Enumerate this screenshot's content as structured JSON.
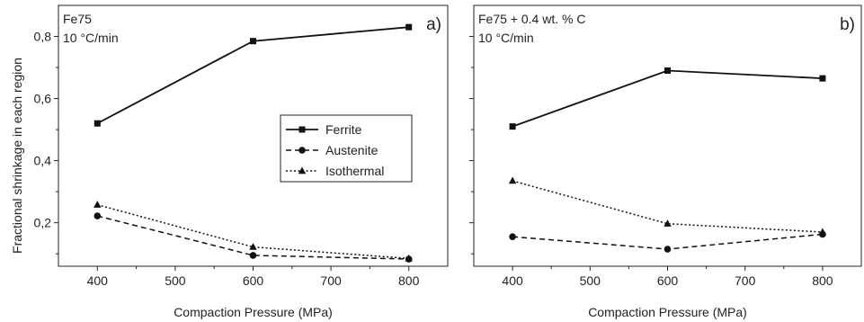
{
  "chart_data": [
    {
      "type": "line",
      "panel_label": "a)",
      "annotation_lines": [
        "Fe75",
        "10 °C/min"
      ],
      "xlabel": "Compaction Pressure (MPa)",
      "ylabel": "Fractional shrinkage in each region",
      "x": [
        400,
        600,
        800
      ],
      "xlim": [
        350,
        850
      ],
      "ylim": [
        0.06,
        0.9
      ],
      "xticks": [
        "400",
        "500",
        "600",
        "700",
        "800"
      ],
      "yticks": [
        "0,2",
        "0,4",
        "0,6",
        "0,8"
      ],
      "grid": false,
      "legend_position": "center-right",
      "series": [
        {
          "name": "Ferrite",
          "values": [
            0.52,
            0.785,
            0.83
          ],
          "line_style": "solid",
          "marker": "square"
        },
        {
          "name": "Austenite",
          "values": [
            0.222,
            0.095,
            0.083
          ],
          "line_style": "dashed",
          "marker": "circle"
        },
        {
          "name": "Isothermal",
          "values": [
            0.258,
            0.122,
            0.085
          ],
          "line_style": "dotted",
          "marker": "triangle"
        }
      ]
    },
    {
      "type": "line",
      "panel_label": "b)",
      "annotation_lines": [
        "Fe75 + 0.4 wt. % C",
        "10 °C/min"
      ],
      "xlabel": "Compaction Pressure (MPa)",
      "ylabel": "",
      "x": [
        400,
        600,
        800
      ],
      "xlim": [
        350,
        850
      ],
      "ylim": [
        0.06,
        0.9
      ],
      "xticks": [
        "400",
        "500",
        "600",
        "700",
        "800"
      ],
      "yticks": [],
      "grid": false,
      "series": [
        {
          "values": [
            0.51,
            0.69,
            0.665
          ],
          "line_style": "solid",
          "marker": "square"
        },
        {
          "values": [
            0.155,
            0.115,
            0.163
          ],
          "line_style": "dashed",
          "marker": "circle"
        },
        {
          "values": [
            0.335,
            0.197,
            0.17
          ],
          "line_style": "dotted",
          "marker": "triangle"
        }
      ]
    }
  ]
}
